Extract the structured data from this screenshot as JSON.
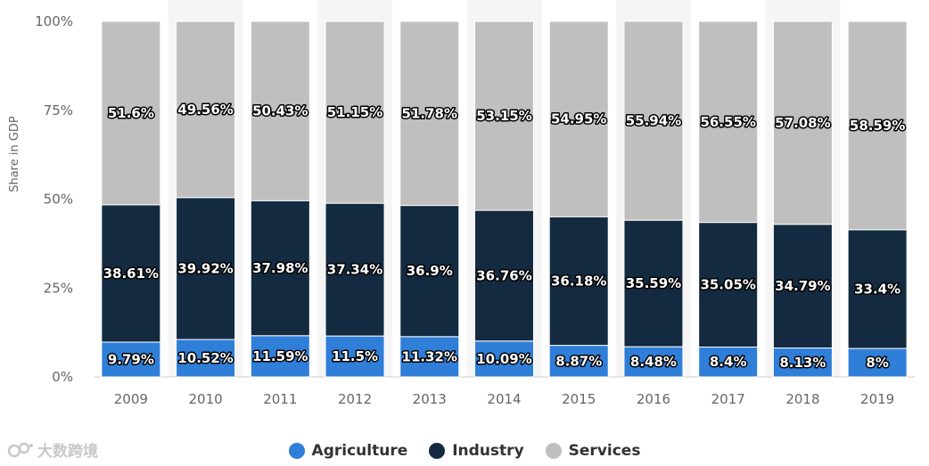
{
  "colors": {
    "agriculture": "#2f7ed8",
    "industry": "#132a40",
    "services": "#bfbfbf",
    "band": "#f5f5f5",
    "axis_line": "#cccccc",
    "grid": "#e0e0e0"
  },
  "legend": [
    {
      "key": "agriculture",
      "label": "Agriculture"
    },
    {
      "key": "industry",
      "label": "Industry"
    },
    {
      "key": "services",
      "label": "Services"
    }
  ],
  "watermark": {
    "text": "大数跨境"
  },
  "chart_data": {
    "type": "bar",
    "stacked": true,
    "ylabel": "Share in GDP",
    "ylim": [
      0,
      100
    ],
    "yticks": [
      0,
      25,
      50,
      75,
      100
    ],
    "ytick_labels": [
      "0%",
      "25%",
      "50%",
      "75%",
      "100%"
    ],
    "categories": [
      "2009",
      "2010",
      "2011",
      "2012",
      "2013",
      "2014",
      "2015",
      "2016",
      "2017",
      "2018",
      "2019"
    ],
    "series": [
      {
        "name": "Agriculture",
        "key": "agriculture",
        "values": [
          9.79,
          10.52,
          11.59,
          11.5,
          11.32,
          10.09,
          8.87,
          8.48,
          8.4,
          8.13,
          8
        ],
        "labels": [
          "9.79%",
          "10.52%",
          "11.59%",
          "11.5%",
          "11.32%",
          "10.09%",
          "8.87%",
          "8.48%",
          "8.4%",
          "8.13%",
          "8%"
        ]
      },
      {
        "name": "Industry",
        "key": "industry",
        "values": [
          38.61,
          39.92,
          37.98,
          37.34,
          36.9,
          36.76,
          36.18,
          35.59,
          35.05,
          34.79,
          33.4
        ],
        "labels": [
          "38.61%",
          "39.92%",
          "37.98%",
          "37.34%",
          "36.9%",
          "36.76%",
          "36.18%",
          "35.59%",
          "35.05%",
          "34.79%",
          "33.4%"
        ]
      },
      {
        "name": "Services",
        "key": "services",
        "values": [
          51.6,
          49.56,
          50.43,
          51.15,
          51.78,
          53.15,
          54.95,
          55.94,
          56.55,
          57.08,
          58.59
        ],
        "labels": [
          "51.6%",
          "49.56%",
          "50.43%",
          "51.15%",
          "51.78%",
          "53.15%",
          "54.95%",
          "55.94%",
          "56.55%",
          "57.08%",
          "58.59%"
        ]
      }
    ]
  }
}
